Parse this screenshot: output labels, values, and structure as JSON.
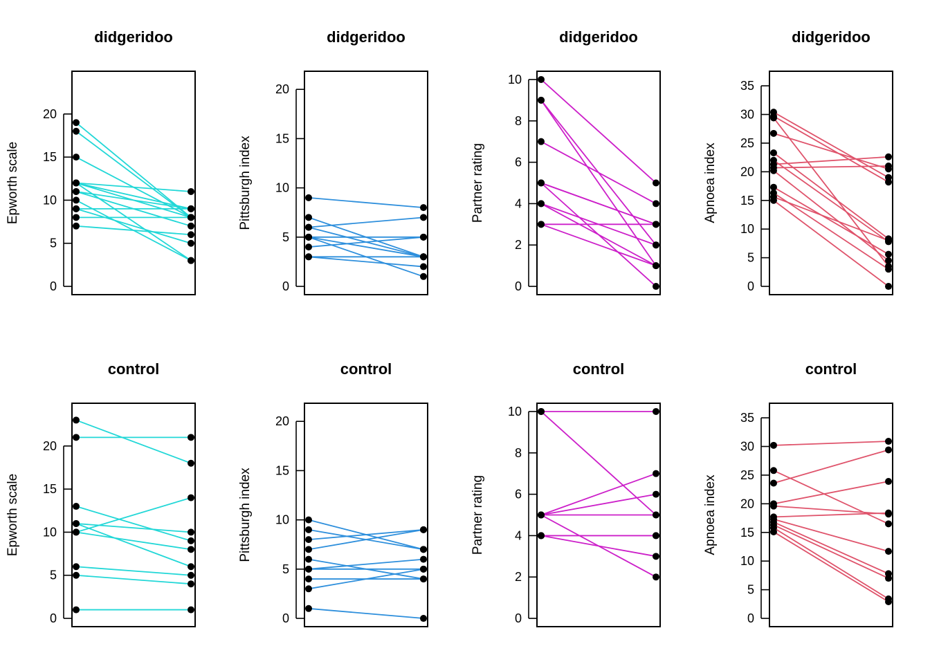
{
  "chart_data": {
    "type": "line",
    "layout": "2 rows x 4 columns of paired before/after slope plots",
    "rows": [
      "didgeridoo",
      "control"
    ],
    "columns": [
      "Epworth scale",
      "Pittsburgh index",
      "Partner rating",
      "Apnoea index"
    ],
    "panels": [
      {
        "title": "didgeridoo",
        "ylabel": "Epworth scale",
        "color": "#22d7d7",
        "ylim": [
          0,
          24
        ],
        "yticks": [
          0,
          5,
          10,
          15,
          20
        ],
        "pairs": [
          [
            19,
            8
          ],
          [
            18,
            8
          ],
          [
            15,
            8
          ],
          [
            12,
            11
          ],
          [
            12,
            9
          ],
          [
            12,
            8
          ],
          [
            12,
            3
          ],
          [
            11,
            9
          ],
          [
            11,
            7
          ],
          [
            10,
            3
          ],
          [
            9,
            9
          ],
          [
            9,
            5
          ],
          [
            8,
            8
          ],
          [
            7,
            6
          ]
        ]
      },
      {
        "title": "didgeridoo",
        "ylabel": "Pittsburgh index",
        "color": "#2e8fdc",
        "ylim": [
          0,
          21
        ],
        "yticks": [
          0,
          5,
          10,
          15,
          20
        ],
        "pairs": [
          [
            9,
            8
          ],
          [
            7,
            3
          ],
          [
            6,
            7
          ],
          [
            6,
            3
          ],
          [
            5,
            5
          ],
          [
            5,
            3
          ],
          [
            5,
            1
          ],
          [
            4,
            5
          ],
          [
            3,
            3
          ],
          [
            3,
            2
          ]
        ]
      },
      {
        "title": "didgeridoo",
        "ylabel": "Partner rating",
        "color": "#cc1fc9",
        "ylim": [
          0,
          10
        ],
        "yticks": [
          0,
          2,
          4,
          6,
          8,
          10
        ],
        "pairs": [
          [
            10,
            5
          ],
          [
            9,
            2
          ],
          [
            9,
            1
          ],
          [
            7,
            4
          ],
          [
            5,
            3
          ],
          [
            5,
            3
          ],
          [
            5,
            0
          ],
          [
            4,
            2
          ],
          [
            4,
            1
          ],
          [
            3,
            3
          ],
          [
            3,
            1
          ]
        ]
      },
      {
        "title": "didgeridoo",
        "ylabel": "Apnoea index",
        "color": "#df536b",
        "ylim": [
          0,
          36.1
        ],
        "yticks": [
          0,
          5,
          10,
          15,
          20,
          25,
          30,
          35
        ],
        "pairs": [
          [
            30.4,
            19.0
          ],
          [
            29.7,
            18.2
          ],
          [
            29.4,
            3.5
          ],
          [
            26.7,
            20.5
          ],
          [
            23.3,
            8.3
          ],
          [
            22.0,
            7.8
          ],
          [
            21.3,
            22.6
          ],
          [
            20.7,
            21.0
          ],
          [
            20.2,
            4.5
          ],
          [
            17.3,
            5.6
          ],
          [
            16.3,
            3.0
          ],
          [
            15.6,
            8.0
          ],
          [
            15.0,
            0.0
          ]
        ]
      },
      {
        "title": "control",
        "ylabel": "Epworth scale",
        "color": "#22d7d7",
        "ylim": [
          0,
          24
        ],
        "yticks": [
          0,
          5,
          10,
          15,
          20
        ],
        "pairs": [
          [
            23,
            18
          ],
          [
            21,
            21
          ],
          [
            13,
            9
          ],
          [
            11,
            10
          ],
          [
            11,
            6
          ],
          [
            10,
            14
          ],
          [
            10,
            8
          ],
          [
            6,
            5
          ],
          [
            5,
            4
          ],
          [
            1,
            1
          ]
        ]
      },
      {
        "title": "control",
        "ylabel": "Pittsburgh index",
        "color": "#2e8fdc",
        "ylim": [
          0,
          21
        ],
        "yticks": [
          0,
          5,
          10,
          15,
          20
        ],
        "pairs": [
          [
            10,
            7
          ],
          [
            9,
            7
          ],
          [
            8,
            9
          ],
          [
            7,
            9
          ],
          [
            6,
            4
          ],
          [
            5,
            6
          ],
          [
            5,
            5
          ],
          [
            4,
            4
          ],
          [
            3,
            5
          ],
          [
            1,
            0
          ]
        ]
      },
      {
        "title": "control",
        "ylabel": "Partner rating",
        "color": "#cc1fc9",
        "ylim": [
          0,
          10
        ],
        "yticks": [
          0,
          2,
          4,
          6,
          8,
          10
        ],
        "pairs": [
          [
            10,
            10
          ],
          [
            10,
            5
          ],
          [
            5,
            7
          ],
          [
            5,
            6
          ],
          [
            5,
            5
          ],
          [
            5,
            2
          ],
          [
            4,
            4
          ],
          [
            4,
            4
          ],
          [
            4,
            3
          ]
        ]
      },
      {
        "title": "control",
        "ylabel": "Apnoea index",
        "color": "#df536b",
        "ylim": [
          0,
          36.1
        ],
        "yticks": [
          0,
          5,
          10,
          15,
          20,
          25,
          30,
          35
        ],
        "pairs": [
          [
            30.2,
            30.9
          ],
          [
            25.8,
            16.5
          ],
          [
            23.6,
            29.4
          ],
          [
            20.0,
            23.9
          ],
          [
            19.6,
            18.2
          ],
          [
            17.7,
            18.4
          ],
          [
            17.3,
            11.7
          ],
          [
            16.8,
            7.8
          ],
          [
            16.3,
            7.0
          ],
          [
            15.8,
            3.4
          ],
          [
            15.1,
            2.9
          ]
        ]
      }
    ],
    "xlabel": "",
    "grid": false,
    "legend": "none"
  }
}
